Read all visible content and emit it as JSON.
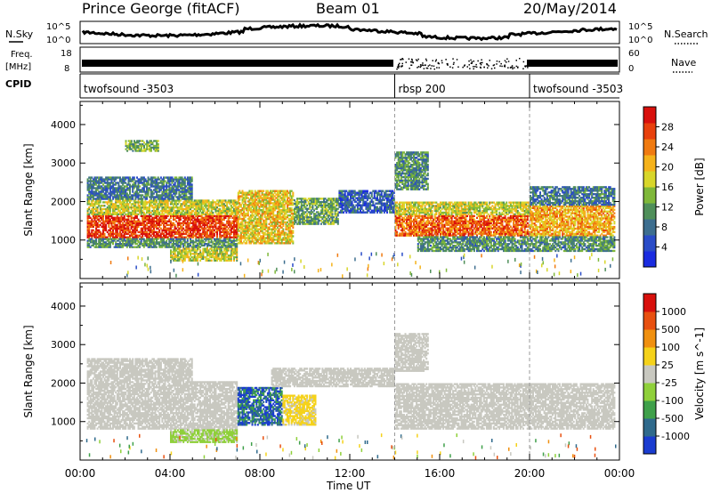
{
  "header": {
    "station": "Prince George (fitACF)",
    "beam": "Beam 01",
    "date": "20/May/2014"
  },
  "strips": {
    "nsky_label": "N.Sky",
    "nsky_ticks": [
      "10^5",
      "10^0"
    ],
    "nsearch_label": "N.Search",
    "nsearch_ticks": [
      "10^5",
      "10^0"
    ],
    "freq_label_1": "Freq.",
    "freq_label_2": "[MHz]",
    "freq_ticks": [
      "18",
      "8"
    ],
    "nave_label": "Nave",
    "nave_ticks": [
      "60",
      "0"
    ],
    "cpid_label": "CPID",
    "cpid_segments": [
      {
        "label": "twofsound -3503",
        "start_h": 0,
        "end_h": 14
      },
      {
        "label": "rbsp 200",
        "start_h": 14,
        "end_h": 20
      },
      {
        "label": "twofsound -3503",
        "start_h": 20,
        "end_h": 24
      }
    ]
  },
  "x_ticks": [
    "00:00",
    "04:00",
    "08:00",
    "12:00",
    "16:00",
    "20:00",
    "00:00"
  ],
  "chart_data": [
    {
      "type": "heatmap",
      "title": "",
      "xlabel": "Time UT",
      "ylabel": "Slant Range [km]",
      "xlim": [
        0,
        24
      ],
      "ylim": [
        0,
        4600
      ],
      "y_ticks": [
        "1000",
        "2000",
        "3000",
        "4000"
      ],
      "colorbar": {
        "label": "Power [dB]",
        "ticks": [
          "28",
          "24",
          "20",
          "16",
          "12",
          "8",
          "4"
        ],
        "range": [
          0,
          30
        ],
        "colors": [
          "#1a2ce0",
          "#2a4cc8",
          "#3d6e8f",
          "#4f8f5a",
          "#7fb83a",
          "#d8d62a",
          "#f5b21a",
          "#f07a10",
          "#e8400c",
          "#d8100c"
        ]
      },
      "bands": [
        {
          "t0": 0.3,
          "t1": 7.0,
          "r0": 1050,
          "r1": 1650,
          "v": 26
        },
        {
          "t0": 0.3,
          "t1": 7.0,
          "r0": 1650,
          "r1": 2050,
          "v": 16
        },
        {
          "t0": 0.3,
          "t1": 7.0,
          "r0": 800,
          "r1": 1050,
          "v": 10
        },
        {
          "t0": 0.3,
          "t1": 5.0,
          "r0": 2050,
          "r1": 2650,
          "v": 8
        },
        {
          "t0": 2.0,
          "t1": 3.5,
          "r0": 3300,
          "r1": 3600,
          "v": 12
        },
        {
          "t0": 4.0,
          "t1": 7.0,
          "r0": 450,
          "r1": 800,
          "v": 16
        },
        {
          "t0": 7.0,
          "t1": 9.5,
          "r0": 900,
          "r1": 2300,
          "v": 18
        },
        {
          "t0": 9.5,
          "t1": 11.5,
          "r0": 1400,
          "r1": 2100,
          "v": 12
        },
        {
          "t0": 11.5,
          "t1": 14.0,
          "r0": 1700,
          "r1": 2300,
          "v": 6
        },
        {
          "t0": 14.0,
          "t1": 15.5,
          "r0": 2300,
          "r1": 3300,
          "v": 10
        },
        {
          "t0": 14.0,
          "t1": 20.0,
          "r0": 1100,
          "r1": 1650,
          "v": 24
        },
        {
          "t0": 14.0,
          "t1": 20.0,
          "r0": 1650,
          "r1": 2000,
          "v": 16
        },
        {
          "t0": 15.0,
          "t1": 20.0,
          "r0": 700,
          "r1": 1100,
          "v": 10
        },
        {
          "t0": 20.0,
          "t1": 23.8,
          "r0": 1100,
          "r1": 1900,
          "v": 20
        },
        {
          "t0": 20.0,
          "t1": 23.8,
          "r0": 700,
          "r1": 1100,
          "v": 10
        },
        {
          "t0": 20.0,
          "t1": 23.8,
          "r0": 1900,
          "r1": 2400,
          "v": 8
        }
      ]
    },
    {
      "type": "heatmap",
      "title": "",
      "xlabel": "Time UT",
      "ylabel": "Slant Range [km]",
      "xlim": [
        0,
        24
      ],
      "ylim": [
        0,
        4600
      ],
      "y_ticks": [
        "1000",
        "2000",
        "3000",
        "4000"
      ],
      "colorbar": {
        "label": "Velocity [m s^-1]",
        "ticks": [
          "1000",
          "500",
          "100",
          "25",
          "-25",
          "-100",
          "-500",
          "-1000"
        ],
        "range": [
          -1000,
          1000
        ],
        "colors": [
          "#1a3cd0",
          "#2f6a8c",
          "#3fa04a",
          "#8fd03a",
          "#c8c8c0",
          "#f5d21a",
          "#f09010",
          "#e85010",
          "#d8100c"
        ]
      },
      "bands": [
        {
          "t0": 0.3,
          "t1": 7.0,
          "r0": 800,
          "r1": 2050,
          "v": 0
        },
        {
          "t0": 0.3,
          "t1": 5.0,
          "r0": 2050,
          "r1": 2650,
          "v": 0
        },
        {
          "t0": 4.0,
          "t1": 7.0,
          "r0": 450,
          "r1": 800,
          "v": -150
        },
        {
          "t0": 7.0,
          "t1": 9.0,
          "r0": 900,
          "r1": 1900,
          "v": -700
        },
        {
          "t0": 9.0,
          "t1": 10.5,
          "r0": 900,
          "r1": 1700,
          "v": 150
        },
        {
          "t0": 8.5,
          "t1": 14.0,
          "r0": 1900,
          "r1": 2400,
          "v": 0
        },
        {
          "t0": 14.0,
          "t1": 23.8,
          "r0": 800,
          "r1": 2000,
          "v": 0
        },
        {
          "t0": 14.0,
          "t1": 15.5,
          "r0": 2300,
          "r1": 3300,
          "v": 0
        }
      ]
    }
  ]
}
